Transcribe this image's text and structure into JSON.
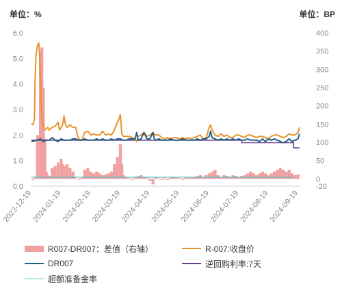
{
  "chart_data": {
    "type": "line",
    "unit_left": "单位：%",
    "unit_right": "单位：BP",
    "y_left": {
      "min": 0,
      "max": 6,
      "ticks": [
        "0.0",
        "1.0",
        "2.0",
        "3.0",
        "4.0",
        "5.0",
        "6.0"
      ]
    },
    "y_right": {
      "min": -20,
      "max": 400,
      "ticks": [
        "-20",
        "0",
        "50",
        "100",
        "150",
        "200",
        "250",
        "300",
        "350",
        "400"
      ]
    },
    "x_range": [
      0,
      9.1
    ],
    "x_labels": [
      "2023-12-19",
      "2024-01-19",
      "2024-02-19",
      "2024-03-19",
      "2024-04-19",
      "2024-05-19",
      "2024-06-19",
      "2024-07-19",
      "2024-08-19",
      "2024-09-19"
    ],
    "colors": {
      "spread": "#f0a0a0",
      "r007": "#e8922a",
      "dr007": "#1f5f86",
      "reverse_repo": "#6a3e8f",
      "excess_reserve": "#4ec0c0",
      "axis": "#d0d0d0",
      "text": "#888888"
    },
    "series": [
      {
        "name": "R007-DR007：差值（右轴）",
        "type": "bar",
        "axis": "right",
        "points": [
          [
            0.05,
            -3
          ],
          [
            0.15,
            5
          ],
          [
            0.2,
            120
          ],
          [
            0.3,
            350
          ],
          [
            0.35,
            360
          ],
          [
            0.4,
            250
          ],
          [
            0.45,
            110
          ],
          [
            0.5,
            20
          ],
          [
            0.55,
            10
          ],
          [
            0.6,
            8
          ],
          [
            0.7,
            30
          ],
          [
            0.8,
            35
          ],
          [
            0.9,
            45
          ],
          [
            1.0,
            55
          ],
          [
            1.05,
            40
          ],
          [
            1.1,
            35
          ],
          [
            1.2,
            40
          ],
          [
            1.3,
            30
          ],
          [
            1.4,
            20
          ],
          [
            1.45,
            5
          ],
          [
            1.6,
            -3
          ],
          [
            1.7,
            3
          ],
          [
            1.8,
            25
          ],
          [
            1.9,
            30
          ],
          [
            2.0,
            20
          ],
          [
            2.1,
            15
          ],
          [
            2.2,
            20
          ],
          [
            2.3,
            15
          ],
          [
            2.4,
            10
          ],
          [
            2.5,
            12
          ],
          [
            2.6,
            15
          ],
          [
            2.7,
            20
          ],
          [
            2.8,
            40
          ],
          [
            2.9,
            60
          ],
          [
            3.0,
            95
          ],
          [
            3.05,
            40
          ],
          [
            3.1,
            10
          ],
          [
            3.2,
            5
          ],
          [
            3.3,
            2
          ],
          [
            3.4,
            -3
          ],
          [
            3.5,
            5
          ],
          [
            3.6,
            8
          ],
          [
            3.7,
            10
          ],
          [
            3.8,
            5
          ],
          [
            3.9,
            3
          ],
          [
            4.0,
            -5
          ],
          [
            4.1,
            -15
          ],
          [
            4.2,
            5
          ],
          [
            4.3,
            2
          ],
          [
            4.4,
            -3
          ],
          [
            4.5,
            3
          ],
          [
            4.6,
            -3
          ],
          [
            4.7,
            3
          ],
          [
            4.8,
            5
          ],
          [
            4.9,
            3
          ],
          [
            5.0,
            2
          ],
          [
            5.1,
            -3
          ],
          [
            5.2,
            3
          ],
          [
            5.3,
            5
          ],
          [
            5.4,
            3
          ],
          [
            5.5,
            5
          ],
          [
            5.6,
            8
          ],
          [
            5.7,
            10
          ],
          [
            5.8,
            5
          ],
          [
            5.9,
            10
          ],
          [
            6.0,
            15
          ],
          [
            6.1,
            20
          ],
          [
            6.2,
            25
          ],
          [
            6.3,
            10
          ],
          [
            6.4,
            5
          ],
          [
            6.5,
            10
          ],
          [
            6.6,
            8
          ],
          [
            6.7,
            5
          ],
          [
            6.8,
            10
          ],
          [
            6.9,
            8
          ],
          [
            7.0,
            5
          ],
          [
            7.1,
            8
          ],
          [
            7.2,
            10
          ],
          [
            7.3,
            15
          ],
          [
            7.4,
            20
          ],
          [
            7.5,
            15
          ],
          [
            7.6,
            10
          ],
          [
            7.7,
            15
          ],
          [
            7.8,
            20
          ],
          [
            7.9,
            15
          ],
          [
            8.0,
            10
          ],
          [
            8.1,
            15
          ],
          [
            8.2,
            20
          ],
          [
            8.3,
            25
          ],
          [
            8.4,
            30
          ],
          [
            8.5,
            25
          ],
          [
            8.6,
            20
          ],
          [
            8.7,
            25
          ],
          [
            8.8,
            15
          ],
          [
            8.9,
            10
          ],
          [
            9.0,
            12
          ]
        ]
      },
      {
        "name": "R-007:收盘价",
        "type": "line",
        "axis": "left",
        "points": [
          [
            0.0,
            2.45
          ],
          [
            0.05,
            2.4
          ],
          [
            0.1,
            2.6
          ],
          [
            0.12,
            4.0
          ],
          [
            0.15,
            5.1
          ],
          [
            0.2,
            5.5
          ],
          [
            0.25,
            5.6
          ],
          [
            0.28,
            5.0
          ],
          [
            0.32,
            3.5
          ],
          [
            0.36,
            2.6
          ],
          [
            0.4,
            2.3
          ],
          [
            0.45,
            2.2
          ],
          [
            0.55,
            2.3
          ],
          [
            0.6,
            2.2
          ],
          [
            0.7,
            2.3
          ],
          [
            0.8,
            2.35
          ],
          [
            0.9,
            2.5
          ],
          [
            0.95,
            2.2
          ],
          [
            1.05,
            2.4
          ],
          [
            1.1,
            2.75
          ],
          [
            1.15,
            2.4
          ],
          [
            1.2,
            2.3
          ],
          [
            1.3,
            2.4
          ],
          [
            1.4,
            2.3
          ],
          [
            1.5,
            2.3
          ],
          [
            1.55,
            2.0
          ],
          [
            1.6,
            1.85
          ],
          [
            1.7,
            1.8
          ],
          [
            1.8,
            2.1
          ],
          [
            1.9,
            2.15
          ],
          [
            2.0,
            2.0
          ],
          [
            2.1,
            2.05
          ],
          [
            2.2,
            2.0
          ],
          [
            2.3,
            2.0
          ],
          [
            2.4,
            2.15
          ],
          [
            2.5,
            2.0
          ],
          [
            2.6,
            2.05
          ],
          [
            2.7,
            2.0
          ],
          [
            2.8,
            2.2
          ],
          [
            2.9,
            2.5
          ],
          [
            2.95,
            2.6
          ],
          [
            3.0,
            2.8
          ],
          [
            3.05,
            2.05
          ],
          [
            3.1,
            1.95
          ],
          [
            3.2,
            1.95
          ],
          [
            3.3,
            1.95
          ],
          [
            3.4,
            1.9
          ],
          [
            3.5,
            1.85
          ],
          [
            3.55,
            1.75
          ],
          [
            3.6,
            1.95
          ],
          [
            3.7,
            2.0
          ],
          [
            3.8,
            2.1
          ],
          [
            3.9,
            1.95
          ],
          [
            4.0,
            2.0
          ],
          [
            4.1,
            2.1
          ],
          [
            4.2,
            2.0
          ],
          [
            4.3,
            2.0
          ],
          [
            4.4,
            1.9
          ],
          [
            4.5,
            1.85
          ],
          [
            4.6,
            1.9
          ],
          [
            4.7,
            1.85
          ],
          [
            4.8,
            1.9
          ],
          [
            4.9,
            1.9
          ],
          [
            5.0,
            1.85
          ],
          [
            5.1,
            1.9
          ],
          [
            5.2,
            1.85
          ],
          [
            5.3,
            1.9
          ],
          [
            5.4,
            1.85
          ],
          [
            5.5,
            1.9
          ],
          [
            5.6,
            1.95
          ],
          [
            5.7,
            2.0
          ],
          [
            5.8,
            1.85
          ],
          [
            5.9,
            1.9
          ],
          [
            5.95,
            2.1
          ],
          [
            6.0,
            2.3
          ],
          [
            6.05,
            2.4
          ],
          [
            6.1,
            2.2
          ],
          [
            6.2,
            2.0
          ],
          [
            6.3,
            1.95
          ],
          [
            6.4,
            2.05
          ],
          [
            6.5,
            1.95
          ],
          [
            6.6,
            2.0
          ],
          [
            6.7,
            1.9
          ],
          [
            6.8,
            1.9
          ],
          [
            6.9,
            2.0
          ],
          [
            7.0,
            2.0
          ],
          [
            7.1,
            1.95
          ],
          [
            7.2,
            1.9
          ],
          [
            7.3,
            2.0
          ],
          [
            7.4,
            2.0
          ],
          [
            7.5,
            1.95
          ],
          [
            7.6,
            1.9
          ],
          [
            7.7,
            1.95
          ],
          [
            7.8,
            1.95
          ],
          [
            7.9,
            1.9
          ],
          [
            8.0,
            1.85
          ],
          [
            8.1,
            1.95
          ],
          [
            8.2,
            2.0
          ],
          [
            8.3,
            2.0
          ],
          [
            8.4,
            1.95
          ],
          [
            8.5,
            1.9
          ],
          [
            8.6,
            1.95
          ],
          [
            8.7,
            2.05
          ],
          [
            8.8,
            2.0
          ],
          [
            8.9,
            2.0
          ],
          [
            9.0,
            2.1
          ],
          [
            9.05,
            2.3
          ]
        ]
      },
      {
        "name": "DR007",
        "type": "line",
        "axis": "left",
        "points": [
          [
            0.0,
            1.75
          ],
          [
            0.2,
            1.8
          ],
          [
            0.3,
            1.85
          ],
          [
            0.4,
            1.75
          ],
          [
            0.5,
            1.8
          ],
          [
            0.6,
            1.8
          ],
          [
            0.7,
            1.9
          ],
          [
            0.75,
            1.85
          ],
          [
            0.8,
            1.8
          ],
          [
            0.9,
            1.75
          ],
          [
            1.0,
            1.85
          ],
          [
            1.1,
            1.8
          ],
          [
            1.2,
            1.8
          ],
          [
            1.3,
            1.8
          ],
          [
            1.4,
            1.85
          ],
          [
            1.5,
            1.85
          ],
          [
            1.6,
            1.8
          ],
          [
            1.7,
            1.8
          ],
          [
            1.8,
            1.85
          ],
          [
            1.9,
            1.8
          ],
          [
            2.0,
            1.8
          ],
          [
            2.1,
            1.8
          ],
          [
            2.2,
            1.85
          ],
          [
            2.3,
            1.8
          ],
          [
            2.4,
            1.85
          ],
          [
            2.5,
            1.8
          ],
          [
            2.6,
            1.8
          ],
          [
            2.7,
            1.85
          ],
          [
            2.8,
            1.8
          ],
          [
            2.9,
            1.85
          ],
          [
            3.0,
            1.85
          ],
          [
            3.1,
            1.8
          ],
          [
            3.2,
            1.8
          ],
          [
            3.3,
            1.85
          ],
          [
            3.4,
            1.85
          ],
          [
            3.5,
            1.85
          ],
          [
            3.55,
            2.1
          ],
          [
            3.6,
            1.8
          ],
          [
            3.7,
            1.85
          ],
          [
            3.8,
            2.1
          ],
          [
            3.9,
            1.85
          ],
          [
            4.0,
            1.85
          ],
          [
            4.1,
            2.1
          ],
          [
            4.15,
            1.85
          ],
          [
            4.2,
            1.8
          ],
          [
            4.3,
            1.85
          ],
          [
            4.4,
            1.8
          ],
          [
            4.5,
            1.8
          ],
          [
            4.6,
            1.8
          ],
          [
            4.7,
            1.85
          ],
          [
            4.8,
            1.8
          ],
          [
            4.9,
            1.8
          ],
          [
            5.0,
            1.8
          ],
          [
            5.1,
            1.85
          ],
          [
            5.2,
            1.8
          ],
          [
            5.3,
            1.8
          ],
          [
            5.4,
            1.8
          ],
          [
            5.5,
            1.8
          ],
          [
            5.6,
            1.85
          ],
          [
            5.7,
            1.8
          ],
          [
            5.8,
            1.85
          ],
          [
            5.9,
            1.85
          ],
          [
            6.0,
            1.95
          ],
          [
            6.05,
            2.15
          ],
          [
            6.1,
            1.9
          ],
          [
            6.2,
            1.85
          ],
          [
            6.3,
            1.8
          ],
          [
            6.4,
            1.85
          ],
          [
            6.5,
            1.8
          ],
          [
            6.6,
            1.85
          ],
          [
            6.7,
            1.8
          ],
          [
            6.8,
            1.85
          ],
          [
            6.9,
            1.8
          ],
          [
            7.0,
            1.85
          ],
          [
            7.1,
            1.8
          ],
          [
            7.2,
            1.8
          ],
          [
            7.3,
            1.85
          ],
          [
            7.4,
            1.8
          ],
          [
            7.5,
            1.8
          ],
          [
            7.6,
            1.8
          ],
          [
            7.7,
            1.75
          ],
          [
            7.8,
            1.85
          ],
          [
            7.9,
            1.75
          ],
          [
            8.0,
            1.85
          ],
          [
            8.1,
            1.8
          ],
          [
            8.2,
            1.85
          ],
          [
            8.3,
            1.8
          ],
          [
            8.4,
            1.75
          ],
          [
            8.5,
            1.7
          ],
          [
            8.6,
            1.75
          ],
          [
            8.7,
            1.85
          ],
          [
            8.8,
            1.75
          ],
          [
            8.9,
            1.8
          ],
          [
            9.0,
            1.85
          ],
          [
            9.05,
            2.05
          ]
        ]
      },
      {
        "name": "逆回购利率:7天",
        "type": "step",
        "axis": "left",
        "points": [
          [
            0.0,
            1.8
          ],
          [
            7.1,
            1.8
          ],
          [
            7.1,
            1.7
          ],
          [
            8.85,
            1.7
          ],
          [
            8.85,
            1.5
          ],
          [
            9.05,
            1.5
          ]
        ]
      },
      {
        "name": "超额准备金率",
        "type": "line",
        "axis": "left",
        "points": [
          [
            0.0,
            0.35
          ],
          [
            8.85,
            0.35
          ]
        ]
      }
    ]
  }
}
